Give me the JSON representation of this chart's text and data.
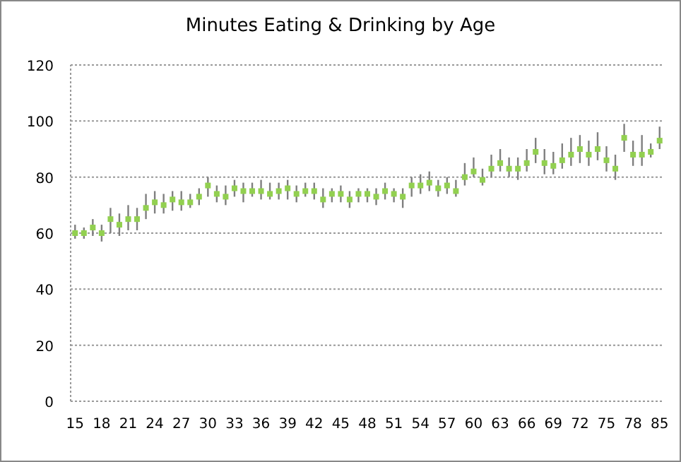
{
  "chart_data": {
    "type": "scatter",
    "title": "Minutes Eating & Drinking by Age",
    "categories": [
      "15",
      null,
      null,
      "18",
      null,
      null,
      "21",
      null,
      null,
      "24",
      null,
      null,
      "27",
      null,
      null,
      "30",
      null,
      null,
      "33",
      null,
      null,
      "36",
      null,
      null,
      "39",
      null,
      null,
      "42",
      null,
      null,
      "45",
      null,
      null,
      "48",
      null,
      null,
      "51",
      null,
      null,
      "54",
      null,
      null,
      "57",
      null,
      null,
      "60",
      null,
      null,
      "63",
      null,
      null,
      "66",
      null,
      null,
      "69",
      null,
      null,
      "72",
      null,
      null,
      "75",
      null,
      null,
      "78",
      null,
      null,
      "85"
    ],
    "series": [
      {
        "color": "#92d050",
        "values": [
          60,
          60,
          62,
          60,
          65,
          63,
          65,
          65,
          69,
          71,
          70,
          72,
          71,
          71,
          73,
          77,
          74,
          73,
          76,
          75,
          75,
          75,
          74,
          75,
          76,
          74,
          75,
          75,
          72,
          74,
          74,
          72,
          74,
          74,
          73,
          75,
          74,
          73,
          77,
          77,
          78,
          76,
          77,
          75,
          80,
          82,
          79,
          83,
          85,
          83,
          83,
          85,
          89,
          85,
          84,
          86,
          88,
          90,
          88,
          90,
          86,
          83,
          94,
          88,
          88,
          89,
          93
        ],
        "errors": [
          [
            58,
            63
          ],
          [
            58,
            62
          ],
          [
            59,
            65
          ],
          [
            57,
            63
          ],
          [
            60,
            69
          ],
          [
            59,
            67
          ],
          [
            61,
            70
          ],
          [
            61,
            69
          ],
          [
            65,
            74
          ],
          [
            67,
            75
          ],
          [
            67,
            74
          ],
          [
            68,
            75
          ],
          [
            68,
            75
          ],
          [
            69,
            74
          ],
          [
            70,
            76
          ],
          [
            73,
            80
          ],
          [
            71,
            77
          ],
          [
            70,
            77
          ],
          [
            73,
            79
          ],
          [
            71,
            78
          ],
          [
            73,
            78
          ],
          [
            72,
            79
          ],
          [
            72,
            78
          ],
          [
            72,
            78
          ],
          [
            72,
            79
          ],
          [
            71,
            77
          ],
          [
            73,
            78
          ],
          [
            72,
            78
          ],
          [
            69,
            76
          ],
          [
            71,
            76
          ],
          [
            71,
            77
          ],
          [
            69,
            75
          ],
          [
            71,
            76
          ],
          [
            71,
            76
          ],
          [
            70,
            76
          ],
          [
            72,
            78
          ],
          [
            71,
            76
          ],
          [
            69,
            76
          ],
          [
            73,
            80
          ],
          [
            74,
            81
          ],
          [
            75,
            82
          ],
          [
            73,
            79
          ],
          [
            74,
            80
          ],
          [
            73,
            79
          ],
          [
            77,
            85
          ],
          [
            80,
            87
          ],
          [
            77,
            83
          ],
          [
            80,
            88
          ],
          [
            82,
            90
          ],
          [
            80,
            87
          ],
          [
            79,
            87
          ],
          [
            82,
            90
          ],
          [
            85,
            94
          ],
          [
            81,
            90
          ],
          [
            81,
            89
          ],
          [
            83,
            92
          ],
          [
            84,
            94
          ],
          [
            85,
            95
          ],
          [
            84,
            93
          ],
          [
            86,
            96
          ],
          [
            82,
            91
          ],
          [
            79,
            88
          ],
          [
            89,
            99
          ],
          [
            84,
            93
          ],
          [
            84,
            95
          ],
          [
            87,
            92
          ],
          [
            90,
            98
          ]
        ]
      }
    ],
    "ylim": [
      0,
      120
    ],
    "yticks": [
      0,
      20,
      40,
      60,
      80,
      100,
      120
    ],
    "grid": "y",
    "marker": "square"
  }
}
